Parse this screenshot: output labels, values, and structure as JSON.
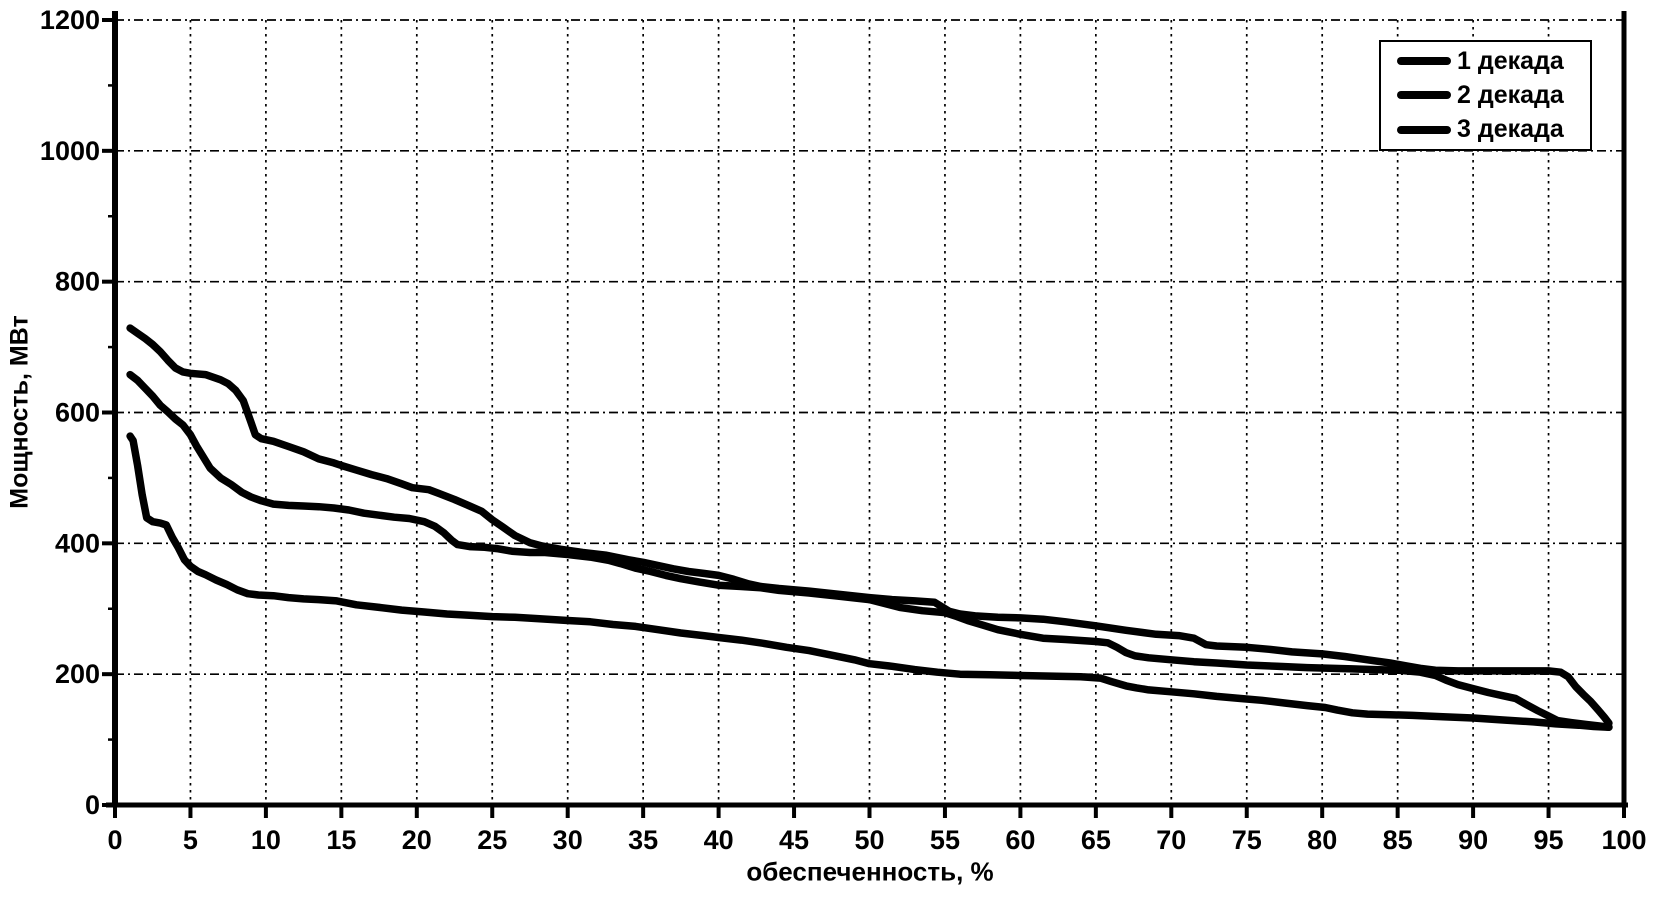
{
  "figure": {
    "background": "#ffffff",
    "ink_color": "#000000"
  },
  "chart_data": {
    "type": "line",
    "title": "",
    "xlabel": "обеспеченность, %",
    "ylabel": "Мощность, МВт",
    "xlim": [
      0,
      100
    ],
    "ylim": [
      0,
      1200
    ],
    "grid": "dash-dot, both axes, black on white",
    "legend_position": "top-right",
    "legend": [
      "1 декада",
      "2 декада",
      "3 декада"
    ],
    "x_ticks": [
      0,
      5,
      10,
      15,
      20,
      25,
      30,
      35,
      40,
      45,
      50,
      55,
      60,
      65,
      70,
      75,
      80,
      85,
      90,
      95,
      100
    ],
    "y_ticks": [
      0,
      200,
      400,
      600,
      800,
      1000,
      1200
    ],
    "y_minor_ticks": [
      100,
      300,
      500,
      700,
      900,
      1100
    ],
    "series": [
      {
        "name": "1 декада",
        "id": "dekada-1",
        "color": "#000000",
        "points": [
          [
            1,
            729
          ],
          [
            1.5,
            721
          ],
          [
            2,
            713
          ],
          [
            2.5,
            704
          ],
          [
            3,
            693
          ],
          [
            3.5,
            680
          ],
          [
            4,
            668
          ],
          [
            4.5,
            662
          ],
          [
            5,
            660
          ],
          [
            6,
            658
          ],
          [
            7,
            650
          ],
          [
            7.5,
            644
          ],
          [
            8,
            634
          ],
          [
            8.5,
            618
          ],
          [
            9,
            586
          ],
          [
            9.3,
            566
          ],
          [
            9.7,
            560
          ],
          [
            10.5,
            556
          ],
          [
            11.5,
            548
          ],
          [
            12.5,
            540
          ],
          [
            13.5,
            529
          ],
          [
            14.5,
            523
          ],
          [
            15,
            519
          ],
          [
            16,
            512
          ],
          [
            17,
            505
          ],
          [
            18,
            499
          ],
          [
            19,
            491
          ],
          [
            19.7,
            485
          ],
          [
            20.8,
            482
          ],
          [
            21.5,
            476
          ],
          [
            22.5,
            467
          ],
          [
            23.5,
            457
          ],
          [
            24.3,
            449
          ],
          [
            25,
            436
          ],
          [
            25.7,
            425
          ],
          [
            26.5,
            412
          ],
          [
            27.5,
            401
          ],
          [
            28.3,
            396
          ],
          [
            29.5,
            391
          ],
          [
            31,
            386
          ],
          [
            32.5,
            382
          ],
          [
            34,
            375
          ],
          [
            35,
            371
          ],
          [
            36,
            366
          ],
          [
            37,
            361
          ],
          [
            38,
            357
          ],
          [
            39,
            354
          ],
          [
            40,
            351
          ],
          [
            41,
            345
          ],
          [
            42,
            338
          ],
          [
            42.8,
            334
          ],
          [
            44,
            331
          ],
          [
            46,
            327
          ],
          [
            48,
            322
          ],
          [
            50,
            317
          ],
          [
            51.5,
            314
          ],
          [
            53,
            312
          ],
          [
            54.3,
            310
          ],
          [
            55.3,
            296
          ],
          [
            56,
            292
          ],
          [
            57,
            289
          ],
          [
            58.5,
            287
          ],
          [
            60,
            286
          ],
          [
            61.5,
            284
          ],
          [
            63,
            280
          ],
          [
            65,
            274
          ],
          [
            67,
            267
          ],
          [
            69,
            261
          ],
          [
            70.5,
            259
          ],
          [
            71.5,
            255
          ],
          [
            72.3,
            245
          ],
          [
            73,
            243
          ],
          [
            75,
            241
          ],
          [
            76.5,
            238
          ],
          [
            78,
            234
          ],
          [
            80,
            231
          ],
          [
            81.5,
            227
          ],
          [
            83,
            222
          ],
          [
            84.5,
            217
          ],
          [
            85.5,
            213
          ],
          [
            86.5,
            209
          ],
          [
            87.5,
            206
          ],
          [
            89,
            205
          ],
          [
            91,
            205
          ],
          [
            93,
            205
          ],
          [
            95,
            205
          ],
          [
            95.8,
            203
          ],
          [
            96.3,
            196
          ],
          [
            96.8,
            181
          ],
          [
            97.3,
            169
          ],
          [
            97.8,
            158
          ],
          [
            98.3,
            145
          ],
          [
            98.7,
            134
          ],
          [
            99,
            125
          ]
        ]
      },
      {
        "name": "2 декада",
        "id": "dekada-2",
        "color": "#000000",
        "points": [
          [
            1,
            658
          ],
          [
            1.5,
            649
          ],
          [
            2,
            637
          ],
          [
            2.5,
            625
          ],
          [
            3,
            611
          ],
          [
            3.5,
            601
          ],
          [
            4,
            590
          ],
          [
            4.5,
            581
          ],
          [
            5,
            566
          ],
          [
            5.4,
            549
          ],
          [
            5.8,
            534
          ],
          [
            6.3,
            515
          ],
          [
            7,
            500
          ],
          [
            7.7,
            490
          ],
          [
            8.4,
            478
          ],
          [
            9,
            471
          ],
          [
            9.7,
            465
          ],
          [
            10.5,
            460
          ],
          [
            11.5,
            458
          ],
          [
            12.5,
            457
          ],
          [
            13.5,
            456
          ],
          [
            14.5,
            454
          ],
          [
            15.5,
            451
          ],
          [
            16.5,
            446
          ],
          [
            17.5,
            443
          ],
          [
            18.5,
            440
          ],
          [
            19.5,
            438
          ],
          [
            20.5,
            433
          ],
          [
            21.2,
            426
          ],
          [
            21.8,
            416
          ],
          [
            22.3,
            405
          ],
          [
            22.7,
            398
          ],
          [
            23.5,
            395
          ],
          [
            24.5,
            394
          ],
          [
            25.3,
            392
          ],
          [
            26.3,
            388
          ],
          [
            27.5,
            386
          ],
          [
            28.5,
            386
          ],
          [
            30,
            383
          ],
          [
            31.5,
            379
          ],
          [
            32.7,
            374
          ],
          [
            33.5,
            369
          ],
          [
            34.5,
            362
          ],
          [
            35.5,
            357
          ],
          [
            36.5,
            351
          ],
          [
            37.5,
            346
          ],
          [
            38.7,
            341
          ],
          [
            40,
            336
          ],
          [
            41.5,
            334
          ],
          [
            42.8,
            332
          ],
          [
            44,
            328
          ],
          [
            46,
            324
          ],
          [
            48,
            319
          ],
          [
            50,
            314
          ],
          [
            51,
            308
          ],
          [
            52,
            302
          ],
          [
            53.5,
            297
          ],
          [
            55,
            294
          ],
          [
            55.8,
            288
          ],
          [
            56.5,
            282
          ],
          [
            57.5,
            275
          ],
          [
            58.5,
            268
          ],
          [
            60,
            261
          ],
          [
            61.5,
            255
          ],
          [
            63,
            253
          ],
          [
            65,
            250
          ],
          [
            65.8,
            248
          ],
          [
            66.4,
            241
          ],
          [
            67,
            233
          ],
          [
            67.6,
            228
          ],
          [
            68.5,
            225
          ],
          [
            70,
            222
          ],
          [
            71.5,
            219
          ],
          [
            73,
            217
          ],
          [
            75,
            214
          ],
          [
            77,
            212
          ],
          [
            79,
            210
          ],
          [
            80.5,
            209
          ],
          [
            82,
            208
          ],
          [
            83.5,
            207
          ],
          [
            85,
            206
          ],
          [
            86.5,
            203
          ],
          [
            87.5,
            198
          ],
          [
            88.2,
            191
          ],
          [
            89,
            184
          ],
          [
            90,
            178
          ],
          [
            91,
            172
          ],
          [
            92,
            167
          ],
          [
            92.8,
            163
          ],
          [
            93.5,
            154
          ],
          [
            94.3,
            144
          ],
          [
            95,
            136
          ],
          [
            95.6,
            129
          ],
          [
            96.5,
            126
          ],
          [
            97.5,
            123
          ],
          [
            98.3,
            121
          ],
          [
            99,
            119
          ]
        ]
      },
      {
        "name": "3 декада",
        "id": "dekada-3",
        "color": "#000000",
        "points": [
          [
            1,
            564
          ],
          [
            1.2,
            557
          ],
          [
            1.5,
            519
          ],
          [
            1.8,
            474
          ],
          [
            2.1,
            439
          ],
          [
            2.5,
            433
          ],
          [
            3,
            431
          ],
          [
            3.4,
            428
          ],
          [
            3.8,
            409
          ],
          [
            4.2,
            393
          ],
          [
            4.6,
            375
          ],
          [
            5,
            365
          ],
          [
            5.5,
            357
          ],
          [
            6,
            352
          ],
          [
            6.7,
            344
          ],
          [
            7.4,
            337
          ],
          [
            8.1,
            329
          ],
          [
            8.8,
            323
          ],
          [
            9.5,
            321
          ],
          [
            10.5,
            320
          ],
          [
            11.5,
            317
          ],
          [
            12.5,
            315
          ],
          [
            13.5,
            314
          ],
          [
            14.7,
            312
          ],
          [
            16,
            306
          ],
          [
            17.5,
            302
          ],
          [
            19,
            298
          ],
          [
            20.5,
            295
          ],
          [
            22,
            292
          ],
          [
            23.5,
            290
          ],
          [
            25,
            288
          ],
          [
            26.5,
            287
          ],
          [
            28,
            285
          ],
          [
            30,
            282
          ],
          [
            31.5,
            280
          ],
          [
            33,
            276
          ],
          [
            34.5,
            273
          ],
          [
            36,
            268
          ],
          [
            37.5,
            263
          ],
          [
            39,
            259
          ],
          [
            40,
            256
          ],
          [
            41.5,
            252
          ],
          [
            43,
            247
          ],
          [
            44.5,
            241
          ],
          [
            46,
            236
          ],
          [
            47.5,
            229
          ],
          [
            49,
            222
          ],
          [
            50,
            216
          ],
          [
            51.5,
            212
          ],
          [
            53,
            207
          ],
          [
            54.5,
            203
          ],
          [
            56,
            200
          ],
          [
            58,
            199
          ],
          [
            60,
            198
          ],
          [
            62,
            197
          ],
          [
            64,
            196
          ],
          [
            65.3,
            194
          ],
          [
            66,
            189
          ],
          [
            67,
            182
          ],
          [
            67.7,
            179
          ],
          [
            68.5,
            176
          ],
          [
            70,
            173
          ],
          [
            71.5,
            170
          ],
          [
            73,
            166
          ],
          [
            74.5,
            163
          ],
          [
            76,
            160
          ],
          [
            77.5,
            156
          ],
          [
            79,
            152
          ],
          [
            80.2,
            149
          ],
          [
            81,
            145
          ],
          [
            82,
            141
          ],
          [
            83,
            139
          ],
          [
            84.5,
            138
          ],
          [
            86,
            137
          ],
          [
            88,
            135
          ],
          [
            90,
            133
          ],
          [
            92,
            130
          ],
          [
            94,
            127
          ],
          [
            95.5,
            124
          ],
          [
            97,
            122
          ],
          [
            98,
            120
          ],
          [
            99,
            119
          ]
        ]
      }
    ]
  }
}
